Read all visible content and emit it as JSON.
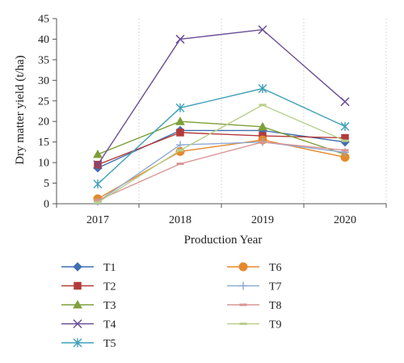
{
  "chart_data": {
    "type": "line",
    "x": [
      "2017",
      "2018",
      "2019",
      "2020"
    ],
    "xlabel": "Production Year",
    "ylabel": "Dry matter yield (t/ha)",
    "ylim": [
      0,
      45
    ],
    "yticks": [
      "0",
      "5",
      "10",
      "15",
      "20",
      "25",
      "30",
      "35",
      "40",
      "45"
    ],
    "grid": "vertical dashed",
    "legend_position": "bottom, two columns",
    "series": [
      {
        "name": "T1",
        "color": "#3e6fb0",
        "marker": "diamond",
        "values": [
          8.7,
          17.8,
          17.8,
          15.0
        ]
      },
      {
        "name": "T2",
        "color": "#b33a3a",
        "marker": "square",
        "values": [
          9.5,
          17.3,
          16.5,
          16.0
        ]
      },
      {
        "name": "T3",
        "color": "#7f9f3a",
        "marker": "triangle",
        "values": [
          12.0,
          20.0,
          18.7,
          12.0
        ]
      },
      {
        "name": "T4",
        "color": "#6b4e96",
        "marker": "x",
        "values": [
          9.5,
          40.0,
          42.3,
          24.8
        ]
      },
      {
        "name": "T5",
        "color": "#3fa0b8",
        "marker": "star",
        "values": [
          4.8,
          23.3,
          28.0,
          18.8
        ]
      },
      {
        "name": "T6",
        "color": "#e48a2c",
        "marker": "circle",
        "values": [
          1.2,
          12.7,
          15.5,
          11.3
        ]
      },
      {
        "name": "T7",
        "color": "#8fa9d6",
        "marker": "plus",
        "values": [
          0.5,
          14.3,
          15.0,
          12.5
        ]
      },
      {
        "name": "T8",
        "color": "#d99594",
        "marker": "dash",
        "values": [
          0.8,
          9.7,
          15.0,
          13.0
        ]
      },
      {
        "name": "T9",
        "color": "#b9cf8a",
        "marker": "dash",
        "values": [
          0.3,
          13.0,
          24.0,
          15.3
        ]
      }
    ]
  }
}
